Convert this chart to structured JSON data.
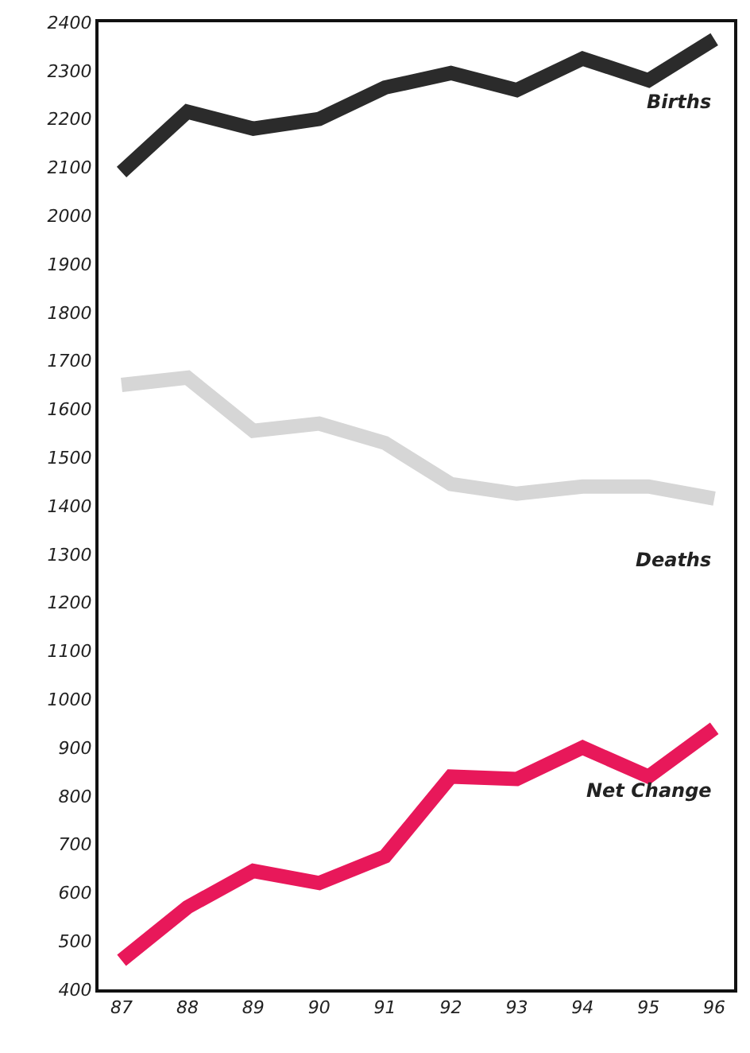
{
  "chart_data": {
    "type": "line",
    "categories": [
      "87",
      "88",
      "89",
      "90",
      "91",
      "92",
      "93",
      "94",
      "95",
      "96"
    ],
    "series": [
      {
        "name": "Births",
        "color": "#2b2b2b",
        "values": [
          2090,
          2215,
          2180,
          2200,
          2265,
          2295,
          2260,
          2325,
          2280,
          2365
        ]
      },
      {
        "name": "Deaths",
        "color": "#d6d6d6",
        "values": [
          1650,
          1665,
          1555,
          1570,
          1530,
          1445,
          1425,
          1440,
          1440,
          1415
        ]
      },
      {
        "name": "Net Change",
        "color": "#e8185a",
        "values": [
          460,
          570,
          645,
          620,
          675,
          840,
          835,
          900,
          840,
          940
        ]
      }
    ],
    "ylim": [
      400,
      2400
    ],
    "yticks": [
      400,
      500,
      600,
      700,
      800,
      900,
      1000,
      1100,
      1200,
      1300,
      1400,
      1500,
      1600,
      1700,
      1800,
      1900,
      2000,
      2100,
      2200,
      2300,
      2400
    ],
    "legend": false,
    "marker": "none",
    "line_style": "solid"
  }
}
